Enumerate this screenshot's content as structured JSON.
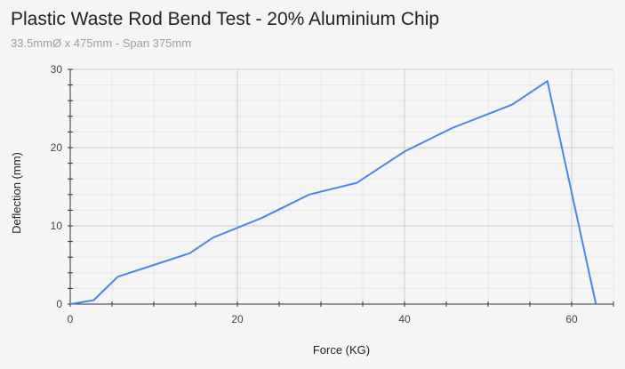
{
  "chart_data": {
    "type": "line",
    "title": "Plastic Waste Rod Bend Test - 20% Aluminium Chip",
    "subtitle": "33.5mmØ x 475mm - Span 375mm",
    "xlabel": "Force (KG)",
    "ylabel": "Deflection (mm)",
    "xlim": [
      0,
      65
    ],
    "ylim": [
      0,
      30
    ],
    "xticks": [
      0,
      20,
      40,
      60
    ],
    "yticks": [
      0,
      10,
      20,
      30
    ],
    "grid": true,
    "line_color": "#4a86e8",
    "series": [
      {
        "x": [
          0,
          2.8,
          5.7,
          10,
          14.3,
          17.1,
          22.9,
          28.6,
          34.3,
          40,
          45.7,
          52.9,
          57.1,
          62.9
        ],
        "y": [
          0,
          0.5,
          3.5,
          5,
          6.5,
          8.5,
          11,
          14,
          15.5,
          19.5,
          22.5,
          25.5,
          28.5,
          0
        ]
      }
    ]
  }
}
